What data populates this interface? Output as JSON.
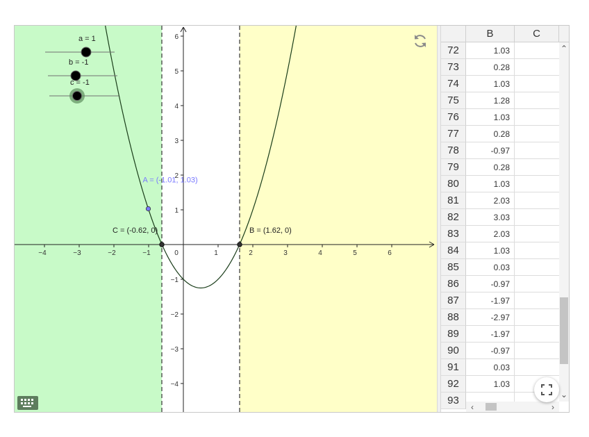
{
  "graphics": {
    "colors": {
      "left_region": "#c8fac8",
      "right_region": "#ffffc8",
      "curve": "#1a3d1a",
      "point_A": "#7878ff",
      "point": "#333333",
      "axis": "#222222"
    },
    "x_tick_labels": [
      "−4",
      "−3",
      "−2",
      "−1",
      "0",
      "1",
      "2",
      "3",
      "4",
      "5",
      "6"
    ],
    "y_tick_labels": [
      "6",
      "5",
      "4",
      "3",
      "2",
      "1",
      "−1",
      "−2",
      "−3",
      "−4"
    ],
    "sliders": [
      {
        "label": "a = 1",
        "value": 1
      },
      {
        "label": "b = -1",
        "value": -1
      },
      {
        "label": "c = -1",
        "value": -1
      }
    ],
    "points": {
      "A": {
        "label": "A = (-1.01, 1.03)",
        "x": -1.01,
        "y": 1.03
      },
      "B": {
        "label": "B = (1.62, 0)",
        "x": 1.62,
        "y": 0
      },
      "C": {
        "label": "C = (-0.62, 0)",
        "x": -0.62,
        "y": 0
      }
    },
    "icons": {
      "refresh": "refresh-icon",
      "keyboard": "keyboard-icon",
      "fullscreen": "fullscreen-icon"
    }
  },
  "spreadsheet": {
    "columns": [
      "B",
      "C"
    ],
    "rows": [
      {
        "n": "72",
        "b": "1.03"
      },
      {
        "n": "73",
        "b": "0.28"
      },
      {
        "n": "74",
        "b": "1.03"
      },
      {
        "n": "75",
        "b": "1.28"
      },
      {
        "n": "76",
        "b": "1.03"
      },
      {
        "n": "77",
        "b": "0.28"
      },
      {
        "n": "78",
        "b": "-0.97"
      },
      {
        "n": "79",
        "b": "0.28"
      },
      {
        "n": "80",
        "b": "1.03"
      },
      {
        "n": "81",
        "b": "2.03"
      },
      {
        "n": "82",
        "b": "3.03"
      },
      {
        "n": "83",
        "b": "2.03"
      },
      {
        "n": "84",
        "b": "1.03"
      },
      {
        "n": "85",
        "b": "0.03"
      },
      {
        "n": "86",
        "b": "-0.97"
      },
      {
        "n": "87",
        "b": "-1.97"
      },
      {
        "n": "88",
        "b": "-2.97"
      },
      {
        "n": "89",
        "b": "-1.97"
      },
      {
        "n": "90",
        "b": "-0.97"
      },
      {
        "n": "91",
        "b": "0.03"
      },
      {
        "n": "92",
        "b": "1.03"
      },
      {
        "n": "93",
        "b": ""
      }
    ]
  }
}
